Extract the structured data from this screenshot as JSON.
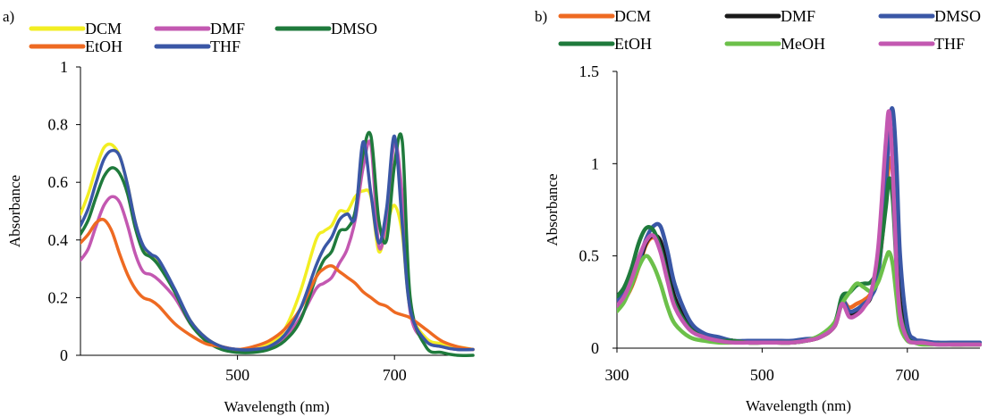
{
  "chart_data": [
    {
      "panel_label": "a)",
      "type": "line",
      "xlabel": "Wavelength (nm)",
      "ylabel": "Absorbance",
      "xlim": [
        300,
        800
      ],
      "ylim": [
        0,
        1
      ],
      "xticks": [
        500,
        700
      ],
      "yticks": [
        0,
        0.2,
        0.4,
        0.6,
        0.8,
        1
      ],
      "ytick_labels": [
        "0",
        "0.2",
        "0.4",
        "0.6",
        "0.8",
        "1"
      ],
      "grid": false,
      "legend_position": "top",
      "legend_order": [
        "DCM",
        "DMF",
        "DMSO",
        "EtOH",
        "THF"
      ],
      "series": [
        {
          "name": "DCM",
          "color": "#f2ee22",
          "x": [
            300,
            310,
            320,
            330,
            340,
            350,
            360,
            370,
            380,
            390,
            400,
            420,
            440,
            460,
            480,
            500,
            520,
            540,
            560,
            580,
            600,
            610,
            620,
            630,
            640,
            650,
            660,
            670,
            680,
            690,
            700,
            710,
            720,
            740,
            760,
            780,
            800
          ],
          "y": [
            0.49,
            0.56,
            0.65,
            0.72,
            0.73,
            0.69,
            0.59,
            0.46,
            0.37,
            0.34,
            0.32,
            0.22,
            0.12,
            0.06,
            0.03,
            0.02,
            0.02,
            0.04,
            0.09,
            0.22,
            0.4,
            0.43,
            0.45,
            0.5,
            0.5,
            0.55,
            0.57,
            0.55,
            0.36,
            0.45,
            0.52,
            0.42,
            0.16,
            0.06,
            0.04,
            0.03,
            0.02
          ]
        },
        {
          "name": "DMF",
          "color": "#c358b1",
          "x": [
            300,
            310,
            320,
            330,
            340,
            350,
            360,
            370,
            380,
            390,
            400,
            420,
            440,
            460,
            480,
            500,
            520,
            540,
            560,
            580,
            600,
            610,
            620,
            630,
            640,
            650,
            660,
            670,
            680,
            690,
            700,
            710,
            720,
            740,
            760,
            780,
            800
          ],
          "y": [
            0.33,
            0.37,
            0.45,
            0.52,
            0.55,
            0.53,
            0.45,
            0.35,
            0.29,
            0.28,
            0.26,
            0.2,
            0.11,
            0.05,
            0.03,
            0.02,
            0.02,
            0.03,
            0.06,
            0.13,
            0.23,
            0.25,
            0.27,
            0.32,
            0.37,
            0.47,
            0.65,
            0.73,
            0.38,
            0.48,
            0.74,
            0.55,
            0.15,
            0.05,
            0.03,
            0.02,
            0.02
          ]
        },
        {
          "name": "DMSO",
          "color": "#1f7a3c",
          "x": [
            300,
            310,
            320,
            330,
            340,
            350,
            360,
            370,
            380,
            390,
            400,
            420,
            440,
            460,
            480,
            500,
            520,
            540,
            560,
            580,
            600,
            610,
            620,
            630,
            640,
            650,
            660,
            670,
            680,
            690,
            700,
            710,
            720,
            740,
            760,
            780,
            800
          ],
          "y": [
            0.42,
            0.47,
            0.55,
            0.62,
            0.65,
            0.63,
            0.56,
            0.44,
            0.36,
            0.34,
            0.31,
            0.22,
            0.11,
            0.05,
            0.02,
            0.01,
            0.01,
            0.02,
            0.05,
            0.12,
            0.27,
            0.33,
            0.36,
            0.43,
            0.44,
            0.5,
            0.7,
            0.76,
            0.47,
            0.4,
            0.66,
            0.74,
            0.2,
            0.03,
            0.01,
            0.0,
            0.0
          ]
        },
        {
          "name": "EtOH",
          "color": "#ee6a22",
          "x": [
            300,
            310,
            320,
            330,
            340,
            350,
            360,
            370,
            380,
            390,
            400,
            420,
            440,
            460,
            480,
            500,
            520,
            540,
            560,
            580,
            600,
            610,
            620,
            630,
            640,
            650,
            660,
            670,
            680,
            690,
            700,
            710,
            720,
            740,
            760,
            780,
            800
          ],
          "y": [
            0.39,
            0.42,
            0.46,
            0.47,
            0.43,
            0.35,
            0.28,
            0.23,
            0.2,
            0.19,
            0.17,
            0.11,
            0.07,
            0.04,
            0.03,
            0.02,
            0.03,
            0.05,
            0.09,
            0.16,
            0.27,
            0.3,
            0.31,
            0.29,
            0.27,
            0.25,
            0.22,
            0.2,
            0.18,
            0.17,
            0.15,
            0.14,
            0.13,
            0.09,
            0.05,
            0.03,
            0.02
          ]
        },
        {
          "name": "THF",
          "color": "#3a57a6",
          "x": [
            300,
            310,
            320,
            330,
            340,
            350,
            360,
            370,
            380,
            390,
            400,
            420,
            440,
            460,
            480,
            500,
            520,
            540,
            560,
            580,
            600,
            610,
            620,
            630,
            640,
            650,
            660,
            670,
            680,
            690,
            700,
            710,
            720,
            740,
            760,
            780,
            800
          ],
          "y": [
            0.45,
            0.51,
            0.6,
            0.68,
            0.71,
            0.69,
            0.59,
            0.46,
            0.38,
            0.35,
            0.33,
            0.23,
            0.12,
            0.06,
            0.03,
            0.02,
            0.02,
            0.03,
            0.07,
            0.16,
            0.31,
            0.37,
            0.41,
            0.47,
            0.49,
            0.48,
            0.74,
            0.56,
            0.39,
            0.51,
            0.76,
            0.45,
            0.16,
            0.05,
            0.03,
            0.02,
            0.02
          ]
        }
      ]
    },
    {
      "panel_label": "b)",
      "type": "line",
      "xlabel": "Wavelength (nm)",
      "ylabel": "Absorbance",
      "xlim": [
        300,
        800
      ],
      "ylim": [
        0,
        1.5
      ],
      "xticks": [
        300,
        500,
        700
      ],
      "yticks": [
        0,
        0.5,
        1,
        1.5
      ],
      "ytick_labels": [
        "0",
        "0.5",
        "1",
        "1.5"
      ],
      "grid": false,
      "legend_position": "top",
      "legend_order": [
        "DCM",
        "DMF",
        "DMSO",
        "EtOH",
        "MeOH",
        "THF"
      ],
      "series": [
        {
          "name": "DCM",
          "color": "#ee6a22",
          "x": [
            300,
            310,
            320,
            330,
            340,
            350,
            360,
            370,
            380,
            400,
            420,
            440,
            460,
            480,
            500,
            520,
            540,
            560,
            580,
            600,
            610,
            620,
            630,
            640,
            650,
            660,
            670,
            675,
            680,
            685,
            690,
            700,
            710,
            720,
            740,
            760,
            780,
            800
          ],
          "y": [
            0.22,
            0.26,
            0.33,
            0.44,
            0.56,
            0.6,
            0.55,
            0.4,
            0.25,
            0.12,
            0.07,
            0.05,
            0.04,
            0.03,
            0.03,
            0.03,
            0.03,
            0.04,
            0.06,
            0.12,
            0.25,
            0.22,
            0.24,
            0.26,
            0.3,
            0.42,
            0.78,
            1.02,
            0.94,
            0.55,
            0.25,
            0.07,
            0.04,
            0.03,
            0.03,
            0.02,
            0.02,
            0.02
          ]
        },
        {
          "name": "DMF",
          "color": "#1a1a1a",
          "x": [
            300,
            310,
            320,
            330,
            340,
            350,
            360,
            370,
            380,
            400,
            420,
            440,
            460,
            480,
            500,
            520,
            540,
            560,
            580,
            600,
            610,
            620,
            630,
            640,
            650,
            660,
            670,
            675,
            680,
            685,
            690,
            700,
            710,
            720,
            740,
            760,
            780,
            800
          ],
          "y": [
            0.23,
            0.27,
            0.34,
            0.45,
            0.57,
            0.61,
            0.58,
            0.43,
            0.27,
            0.12,
            0.07,
            0.05,
            0.04,
            0.03,
            0.03,
            0.03,
            0.03,
            0.04,
            0.06,
            0.12,
            0.25,
            0.18,
            0.2,
            0.23,
            0.28,
            0.45,
            0.9,
            1.2,
            1.05,
            0.6,
            0.25,
            0.07,
            0.04,
            0.03,
            0.03,
            0.02,
            0.02,
            0.02
          ]
        },
        {
          "name": "DMSO",
          "color": "#3a57a6",
          "x": [
            300,
            310,
            320,
            330,
            340,
            350,
            360,
            370,
            380,
            400,
            420,
            440,
            460,
            480,
            500,
            520,
            540,
            560,
            580,
            600,
            610,
            620,
            630,
            640,
            650,
            660,
            670,
            675,
            680,
            685,
            690,
            700,
            710,
            720,
            740,
            760,
            780,
            800
          ],
          "y": [
            0.26,
            0.3,
            0.37,
            0.47,
            0.59,
            0.66,
            0.66,
            0.52,
            0.34,
            0.15,
            0.08,
            0.06,
            0.04,
            0.04,
            0.04,
            0.04,
            0.04,
            0.05,
            0.06,
            0.13,
            0.26,
            0.2,
            0.21,
            0.24,
            0.28,
            0.4,
            0.85,
            1.2,
            1.29,
            1.0,
            0.5,
            0.12,
            0.05,
            0.04,
            0.03,
            0.03,
            0.03,
            0.03
          ]
        },
        {
          "name": "EtOH",
          "color": "#1f7a3c",
          "x": [
            300,
            310,
            320,
            330,
            340,
            350,
            360,
            370,
            380,
            400,
            420,
            440,
            460,
            480,
            500,
            520,
            540,
            560,
            580,
            600,
            610,
            620,
            630,
            640,
            650,
            660,
            670,
            675,
            680,
            685,
            690,
            700,
            710,
            720,
            740,
            760,
            780,
            800
          ],
          "y": [
            0.28,
            0.33,
            0.43,
            0.57,
            0.65,
            0.64,
            0.54,
            0.38,
            0.24,
            0.11,
            0.06,
            0.04,
            0.04,
            0.03,
            0.03,
            0.03,
            0.03,
            0.04,
            0.07,
            0.14,
            0.28,
            0.3,
            0.34,
            0.35,
            0.36,
            0.45,
            0.75,
            0.92,
            0.8,
            0.45,
            0.2,
            0.06,
            0.03,
            0.03,
            0.02,
            0.02,
            0.02,
            0.02
          ]
        },
        {
          "name": "MeOH",
          "color": "#6cc04a",
          "x": [
            300,
            310,
            320,
            330,
            340,
            350,
            360,
            370,
            380,
            400,
            420,
            440,
            460,
            480,
            500,
            520,
            540,
            560,
            580,
            600,
            610,
            620,
            630,
            640,
            650,
            660,
            670,
            675,
            680,
            685,
            690,
            700,
            710,
            720,
            740,
            760,
            780,
            800
          ],
          "y": [
            0.2,
            0.25,
            0.34,
            0.44,
            0.5,
            0.45,
            0.35,
            0.22,
            0.13,
            0.06,
            0.04,
            0.03,
            0.03,
            0.03,
            0.03,
            0.03,
            0.03,
            0.04,
            0.07,
            0.14,
            0.24,
            0.3,
            0.35,
            0.33,
            0.31,
            0.36,
            0.48,
            0.52,
            0.45,
            0.28,
            0.12,
            0.04,
            0.03,
            0.02,
            0.02,
            0.02,
            0.02,
            0.02
          ]
        },
        {
          "name": "THF",
          "color": "#c358b1",
          "x": [
            300,
            310,
            320,
            330,
            340,
            350,
            360,
            370,
            380,
            400,
            420,
            440,
            460,
            480,
            500,
            520,
            540,
            560,
            580,
            600,
            610,
            620,
            630,
            640,
            650,
            660,
            670,
            675,
            680,
            685,
            690,
            700,
            710,
            720,
            740,
            760,
            780,
            800
          ],
          "y": [
            0.23,
            0.28,
            0.37,
            0.49,
            0.58,
            0.61,
            0.52,
            0.36,
            0.22,
            0.1,
            0.06,
            0.04,
            0.03,
            0.03,
            0.03,
            0.03,
            0.03,
            0.04,
            0.06,
            0.12,
            0.24,
            0.17,
            0.18,
            0.22,
            0.3,
            0.55,
            1.1,
            1.28,
            0.95,
            0.45,
            0.18,
            0.05,
            0.03,
            0.03,
            0.02,
            0.02,
            0.02,
            0.02
          ]
        }
      ]
    }
  ]
}
